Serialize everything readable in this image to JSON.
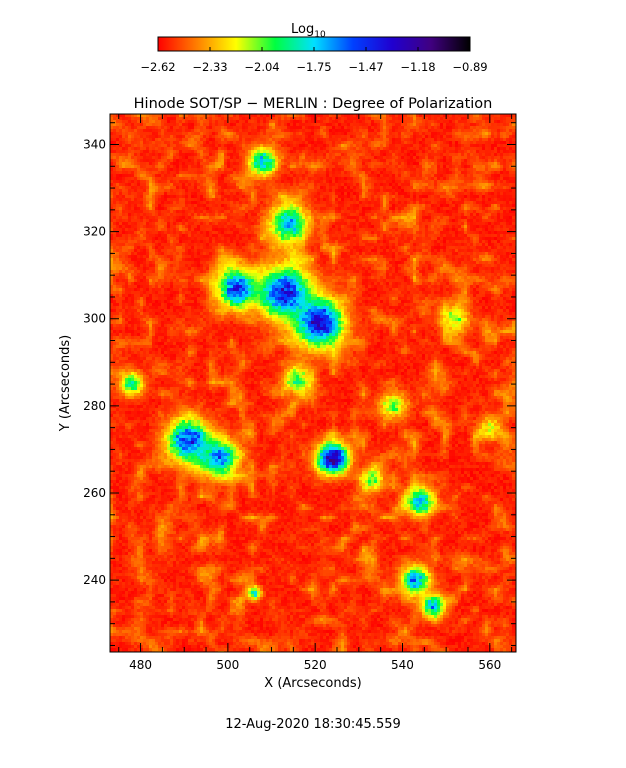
{
  "colorbar": {
    "title": "Log",
    "title_sub": "10",
    "tick_labels": [
      "−2.62",
      "−2.33",
      "−2.04",
      "−1.75",
      "−1.47",
      "−1.18",
      "−0.89"
    ],
    "range": [
      -2.62,
      -0.89
    ],
    "colors": [
      "#ff0000",
      "#ff7f00",
      "#ffff00",
      "#00ff40",
      "#00e0ff",
      "#0040ff",
      "#2000d0",
      "#400080",
      "#000000"
    ]
  },
  "chart_data": {
    "type": "heatmap",
    "title": "Hinode SOT/SP − MERLIN : Degree of Polarization",
    "xlabel": "X (Arcseconds)",
    "ylabel": "Y (Arcseconds)",
    "xlim": [
      473,
      566
    ],
    "ylim": [
      223.5,
      347
    ],
    "xticks": [
      480,
      500,
      520,
      540,
      560
    ],
    "yticks": [
      240,
      260,
      280,
      300,
      320,
      340
    ],
    "value_range": [
      -2.62,
      -0.89
    ],
    "features": [
      {
        "x": 524,
        "y": 268,
        "value": -0.95,
        "spread": 3.2
      },
      {
        "x": 521,
        "y": 299,
        "value": -1.15,
        "spread": 5.0
      },
      {
        "x": 513,
        "y": 306,
        "value": -1.25,
        "spread": 5.5
      },
      {
        "x": 502,
        "y": 307,
        "value": -1.3,
        "spread": 4.0
      },
      {
        "x": 491,
        "y": 272,
        "value": -1.3,
        "spread": 4.5
      },
      {
        "x": 498,
        "y": 268,
        "value": -1.5,
        "spread": 4.0
      },
      {
        "x": 514,
        "y": 322,
        "value": -1.6,
        "spread": 4.0
      },
      {
        "x": 508,
        "y": 336,
        "value": -1.65,
        "spread": 3.0
      },
      {
        "x": 544,
        "y": 258,
        "value": -1.6,
        "spread": 3.0
      },
      {
        "x": 543,
        "y": 240,
        "value": -1.5,
        "spread": 3.0
      },
      {
        "x": 547,
        "y": 234,
        "value": -1.6,
        "spread": 2.5
      },
      {
        "x": 478,
        "y": 285,
        "value": -1.8,
        "spread": 2.5
      },
      {
        "x": 533,
        "y": 263,
        "value": -1.9,
        "spread": 2.5
      },
      {
        "x": 506,
        "y": 237,
        "value": -1.7,
        "spread": 1.5
      },
      {
        "x": 516,
        "y": 286,
        "value": -1.9,
        "spread": 3.0
      },
      {
        "x": 552,
        "y": 300,
        "value": -2.0,
        "spread": 3.0
      },
      {
        "x": 560,
        "y": 275,
        "value": -2.1,
        "spread": 2.5
      },
      {
        "x": 538,
        "y": 280,
        "value": -2.0,
        "spread": 3.0
      }
    ]
  },
  "footer": {
    "timestamp": "12-Aug-2020 18:30:45.559"
  }
}
